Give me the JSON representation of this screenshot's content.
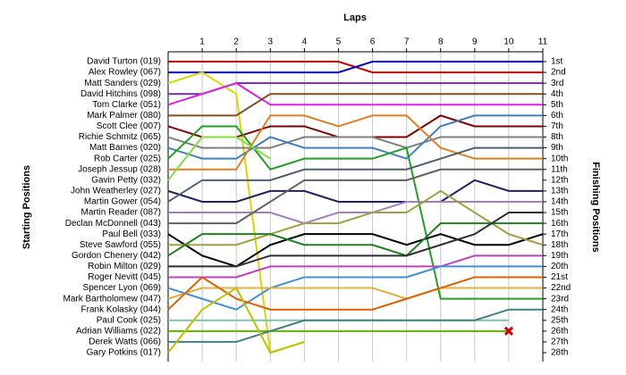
{
  "chart_data": {
    "type": "line",
    "title": "Laps",
    "y_label_left": "Starting Positions",
    "y_label_right": "Finishing Positions",
    "x": [
      0,
      1,
      2,
      3,
      4,
      5,
      6,
      7,
      8,
      9,
      10,
      11
    ],
    "xlim": [
      0,
      11
    ],
    "xticks": [
      1,
      2,
      3,
      4,
      5,
      6,
      7,
      8,
      9,
      10,
      11
    ],
    "ylim": [
      1,
      28
    ],
    "yticks": [
      {
        "value": 1,
        "label": "1st"
      },
      {
        "value": 2,
        "label": "2nd"
      },
      {
        "value": 3,
        "label": "3rd"
      },
      {
        "value": 4,
        "label": "4th"
      },
      {
        "value": 5,
        "label": "5th"
      },
      {
        "value": 6,
        "label": "6th"
      },
      {
        "value": 7,
        "label": "7th"
      },
      {
        "value": 8,
        "label": "8th"
      },
      {
        "value": 9,
        "label": "9th"
      },
      {
        "value": 10,
        "label": "10th"
      },
      {
        "value": 11,
        "label": "11th"
      },
      {
        "value": 12,
        "label": "12th"
      },
      {
        "value": 13,
        "label": "13th"
      },
      {
        "value": 14,
        "label": "14th"
      },
      {
        "value": 15,
        "label": "15th"
      },
      {
        "value": 16,
        "label": "16th"
      },
      {
        "value": 17,
        "label": "17th"
      },
      {
        "value": 18,
        "label": "18th"
      },
      {
        "value": 19,
        "label": "19th"
      },
      {
        "value": 20,
        "label": "20th"
      },
      {
        "value": 21,
        "label": "21st"
      },
      {
        "value": 22,
        "label": "22nd"
      },
      {
        "value": 23,
        "label": "23rd"
      },
      {
        "value": 24,
        "label": "24th"
      },
      {
        "value": 25,
        "label": "25th"
      },
      {
        "value": 26,
        "label": "26th"
      },
      {
        "value": 27,
        "label": "27th"
      },
      {
        "value": 28,
        "label": "28th"
      }
    ],
    "grid": true,
    "series": [
      {
        "name": "David Turton (019)",
        "color": "#c00000",
        "values": [
          1,
          1,
          1,
          1,
          1,
          1,
          2,
          2,
          2,
          2,
          2,
          2
        ]
      },
      {
        "name": "Alex Rowley (067)",
        "color": "#0000c0",
        "values": [
          2,
          2,
          2,
          2,
          2,
          2,
          1,
          1,
          1,
          1,
          1,
          1
        ]
      },
      {
        "name": "Matt Sanders (029)",
        "color": "#d8d800",
        "values": [
          3,
          2,
          4,
          28,
          27,
          null,
          null,
          null,
          null,
          null,
          null,
          null
        ]
      },
      {
        "name": "David Hitchins (098)",
        "color": "#7030a0",
        "values": [
          4,
          4,
          3,
          3,
          3,
          3,
          3,
          3,
          3,
          3,
          3,
          3
        ]
      },
      {
        "name": "Tom Clarke (051)",
        "color": "#e020e0",
        "values": [
          5,
          4,
          3,
          5,
          5,
          5,
          5,
          5,
          5,
          5,
          5,
          5
        ]
      },
      {
        "name": "Mark Palmer (080)",
        "color": "#7f5020",
        "values": [
          6,
          6,
          6,
          4,
          4,
          4,
          4,
          4,
          4,
          4,
          4,
          4
        ]
      },
      {
        "name": "Scott Clee (007)",
        "color": "#800000",
        "values": [
          7,
          8,
          8,
          7,
          7,
          8,
          8,
          8,
          6,
          7,
          7,
          7
        ]
      },
      {
        "name": "Richie Schmitz (065)",
        "color": "#808080",
        "values": [
          8,
          9,
          9,
          9,
          8,
          8,
          8,
          9,
          8,
          8,
          8,
          8
        ]
      },
      {
        "name": "Matt Barnes (020)",
        "color": "#4080c0",
        "values": [
          9,
          10,
          10,
          8,
          9,
          9,
          9,
          10,
          7,
          6,
          6,
          6
        ]
      },
      {
        "name": "Rob Carter (025)",
        "color": "#20a020",
        "values": [
          10,
          7,
          7,
          11,
          10,
          10,
          10,
          9,
          23,
          23,
          23,
          23
        ]
      },
      {
        "name": "Joseph Jessup (028)",
        "color": "#e08020",
        "values": [
          11,
          11,
          11,
          6,
          6,
          7,
          6,
          6,
          9,
          10,
          10,
          10
        ]
      },
      {
        "name": "Gavin Petty (032)",
        "color": "#80e040",
        "values": [
          12,
          8,
          8,
          10,
          null,
          null,
          null,
          null,
          null,
          null,
          null,
          null
        ]
      },
      {
        "name": "John Weatherley (027)",
        "color": "#202060",
        "values": [
          13,
          14,
          14,
          13,
          13,
          14,
          14,
          14,
          14,
          12,
          13,
          13
        ]
      },
      {
        "name": "Martin Gower (054)",
        "color": "#506070",
        "values": [
          14,
          12,
          12,
          12,
          11,
          11,
          11,
          11,
          10,
          9,
          9,
          9
        ]
      },
      {
        "name": "Martin Reader (087)",
        "color": "#a080c0",
        "values": [
          15,
          15,
          15,
          15,
          16,
          15,
          15,
          14,
          14,
          14,
          14,
          14
        ]
      },
      {
        "name": "Declan McDonnell (043)",
        "color": "#606060",
        "values": [
          16,
          16,
          16,
          14,
          12,
          12,
          12,
          12,
          11,
          11,
          11,
          11
        ]
      },
      {
        "name": "Paul Bell (033)",
        "color": "#000000",
        "values": [
          17,
          19,
          20,
          18,
          17,
          17,
          17,
          18,
          17,
          18,
          18,
          17
        ]
      },
      {
        "name": "Steve Sawford (055)",
        "color": "#a0a040",
        "values": [
          18,
          18,
          18,
          17,
          16,
          16,
          15,
          15,
          13,
          15,
          17,
          18
        ]
      },
      {
        "name": "Gordon Chenery (042)",
        "color": "#208020",
        "values": [
          19,
          17,
          17,
          17,
          18,
          18,
          18,
          19,
          16,
          16,
          16,
          16
        ]
      },
      {
        "name": "Robin Milton (029)",
        "color": "#303030",
        "values": [
          20,
          20,
          20,
          19,
          19,
          19,
          19,
          19,
          18,
          17,
          15,
          15
        ]
      },
      {
        "name": "Roger Nevitt (045)",
        "color": "#c040c0",
        "values": [
          21,
          21,
          21,
          20,
          20,
          20,
          20,
          20,
          20,
          19,
          19,
          19
        ]
      },
      {
        "name": "Spencer Lyon (069)",
        "color": "#4090e0",
        "values": [
          22,
          23,
          24,
          22,
          21,
          21,
          21,
          21,
          20,
          20,
          20,
          20
        ]
      },
      {
        "name": "Mark Bartholomew (047)",
        "color": "#e0b040",
        "values": [
          23,
          22,
          22,
          22,
          22,
          22,
          22,
          23,
          22,
          22,
          22,
          22
        ]
      },
      {
        "name": "Frank Kolasky (044)",
        "color": "#e06000",
        "values": [
          24,
          21,
          23,
          24,
          24,
          24,
          24,
          23,
          22,
          21,
          21,
          21
        ]
      },
      {
        "name": "Paul Cook (025)",
        "color": "#80c0b0",
        "values": [
          25,
          25,
          25,
          25,
          25,
          25,
          25,
          25,
          25,
          25,
          25,
          null
        ]
      },
      {
        "name": "Adrian Williams (022)",
        "color": "#60b000",
        "retired": true,
        "values": [
          26,
          26,
          26,
          26,
          26,
          26,
          26,
          26,
          26,
          26,
          26,
          null
        ]
      },
      {
        "name": "Derek Watts (066)",
        "color": "#408080",
        "values": [
          27,
          27,
          27,
          26,
          25,
          25,
          25,
          25,
          25,
          25,
          24,
          24
        ]
      },
      {
        "name": "Gary Potkins (017)",
        "color": "#c0c000",
        "values": [
          28,
          24,
          22,
          28,
          27,
          null,
          null,
          null,
          null,
          null,
          null,
          null
        ]
      }
    ]
  }
}
